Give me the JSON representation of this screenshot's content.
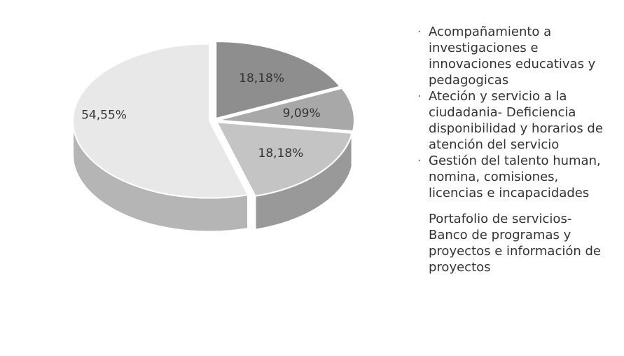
{
  "chart_data": {
    "type": "pie",
    "categories": [
      "Acompañamiento a investigaciones e innovaciones educativas y pedagogicas",
      "Ateción y servicio a la ciudadania- Deficiencia disponibilidad y horarios de atención del servicio",
      "Gestión del talento human, nomina, comisiones, licencias e incapacidades",
      "Portafolio de servicios- Banco de programas y proyectos e información de proyectos"
    ],
    "values": [
      18.18,
      9.09,
      18.18,
      54.55
    ],
    "value_labels": [
      "18,18%",
      "9,09%",
      "18,18%",
      "54,55%"
    ],
    "colors": [
      "#8e8e8e",
      "#a8a8a8",
      "#c4c4c4",
      "#e8e8e8"
    ],
    "legend": "right"
  }
}
